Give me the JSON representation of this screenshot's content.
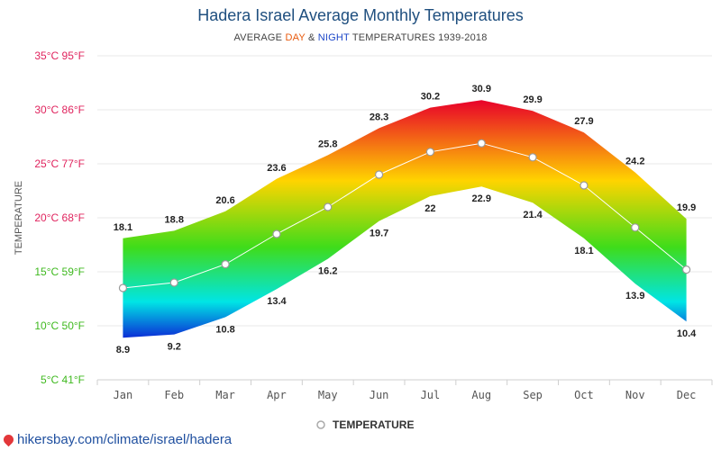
{
  "title": "Hadera Israel Average Monthly Temperatures",
  "subtitle": {
    "prefix": "AVERAGE ",
    "day": "DAY",
    "middle": " & ",
    "night": "NIGHT",
    "suffix": " TEMPERATURES 1939-2018"
  },
  "source_link": "hikersbay.com/climate/israel/hadera",
  "colors": {
    "title": "#1f4f7f",
    "day": "#e8590c",
    "night": "#1b46c8",
    "band_hot": "#e8002a",
    "band_warm": "#ffd400",
    "band_mild": "#3fdc1a",
    "band_cool": "#00e5e5",
    "band_cold": "#0b2fd6"
  },
  "chart_data": {
    "type": "area",
    "ylabel": "TEMPERATURE",
    "categories": [
      "Jan",
      "Feb",
      "Mar",
      "Apr",
      "May",
      "Jun",
      "Jul",
      "Aug",
      "Sep",
      "Oct",
      "Nov",
      "Dec"
    ],
    "ylim": [
      5,
      35
    ],
    "y_ticks": [
      {
        "value": 35,
        "label": "35°C 95°F",
        "color": "#e0245e"
      },
      {
        "value": 30,
        "label": "30°C 86°F",
        "color": "#e0245e"
      },
      {
        "value": 25,
        "label": "25°C 77°F",
        "color": "#e0245e"
      },
      {
        "value": 20,
        "label": "20°C 68°F",
        "color": "#e0245e"
      },
      {
        "value": 15,
        "label": "15°C 59°F",
        "color": "#3fb91f"
      },
      {
        "value": 10,
        "label": "10°C 50°F",
        "color": "#3fb91f"
      },
      {
        "value": 5,
        "label": "5°C 41°F",
        "color": "#3fb91f"
      }
    ],
    "day": [
      18.1,
      18.8,
      20.6,
      23.6,
      25.8,
      28.3,
      30.2,
      30.9,
      29.9,
      27.9,
      24.2,
      19.9
    ],
    "night": [
      8.9,
      9.2,
      10.8,
      13.4,
      16.2,
      19.7,
      22,
      22.9,
      21.4,
      18.1,
      13.9,
      10.4
    ],
    "series": [
      {
        "name": "TEMPERATURE",
        "values": [
          13.5,
          14,
          15.7,
          18.5,
          21,
          24,
          26.1,
          26.9,
          25.6,
          23,
          19.1,
          15.2
        ]
      }
    ],
    "legend_position": "bottom",
    "grid": true
  }
}
